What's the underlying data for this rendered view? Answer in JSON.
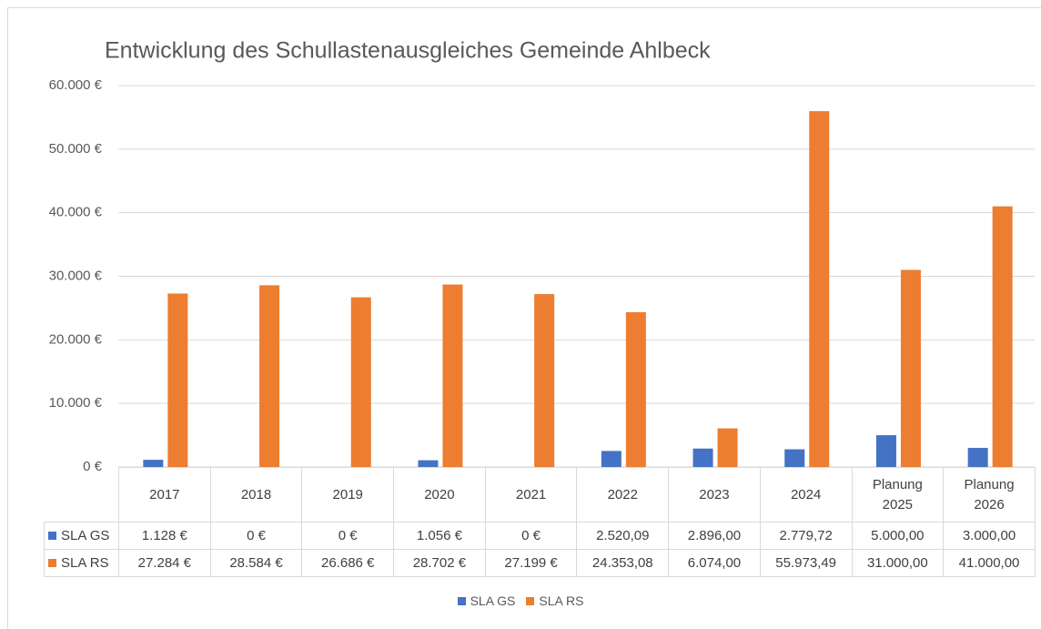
{
  "chart_data": {
    "type": "bar",
    "title": "Entwicklung des Schullastenausgleiches Gemeinde Ahlbeck",
    "categories": [
      "2017",
      "2018",
      "2019",
      "2020",
      "2021",
      "2022",
      "2023",
      "2024",
      "Planung 2025",
      "Planung 2026"
    ],
    "series": [
      {
        "name": "SLA GS",
        "color": "#4472c4",
        "values": [
          1128,
          0,
          0,
          1056,
          0,
          2520.09,
          2896.0,
          2779.72,
          5000.0,
          3000.0
        ],
        "value_labels": [
          "1.128 €",
          "0 €",
          "0 €",
          "1.056 €",
          "0 €",
          "2.520,09",
          "2.896,00",
          "2.779,72",
          "5.000,00",
          "3.000,00"
        ]
      },
      {
        "name": "SLA RS",
        "color": "#ed7d31",
        "values": [
          27284,
          28584,
          26686,
          28702,
          27199,
          24353.08,
          6074.0,
          55973.49,
          31000.0,
          41000.0
        ],
        "value_labels": [
          "27.284 €",
          "28.584 €",
          "26.686 €",
          "28.702 €",
          "27.199 €",
          "24.353,08",
          "6.074,00",
          "55.973,49",
          "31.000,00",
          "41.000,00"
        ]
      }
    ],
    "ylim": [
      0,
      60000
    ],
    "yticks": [
      {
        "value": 0,
        "label": "0 €"
      },
      {
        "value": 10000,
        "label": "10.000 €"
      },
      {
        "value": 20000,
        "label": "20.000 €"
      },
      {
        "value": 30000,
        "label": "30.000 €"
      },
      {
        "value": 40000,
        "label": "40.000 €"
      },
      {
        "value": 50000,
        "label": "50.000 €"
      },
      {
        "value": 60000,
        "label": "60.000 €"
      }
    ],
    "grid": true,
    "legend": "bottom"
  }
}
